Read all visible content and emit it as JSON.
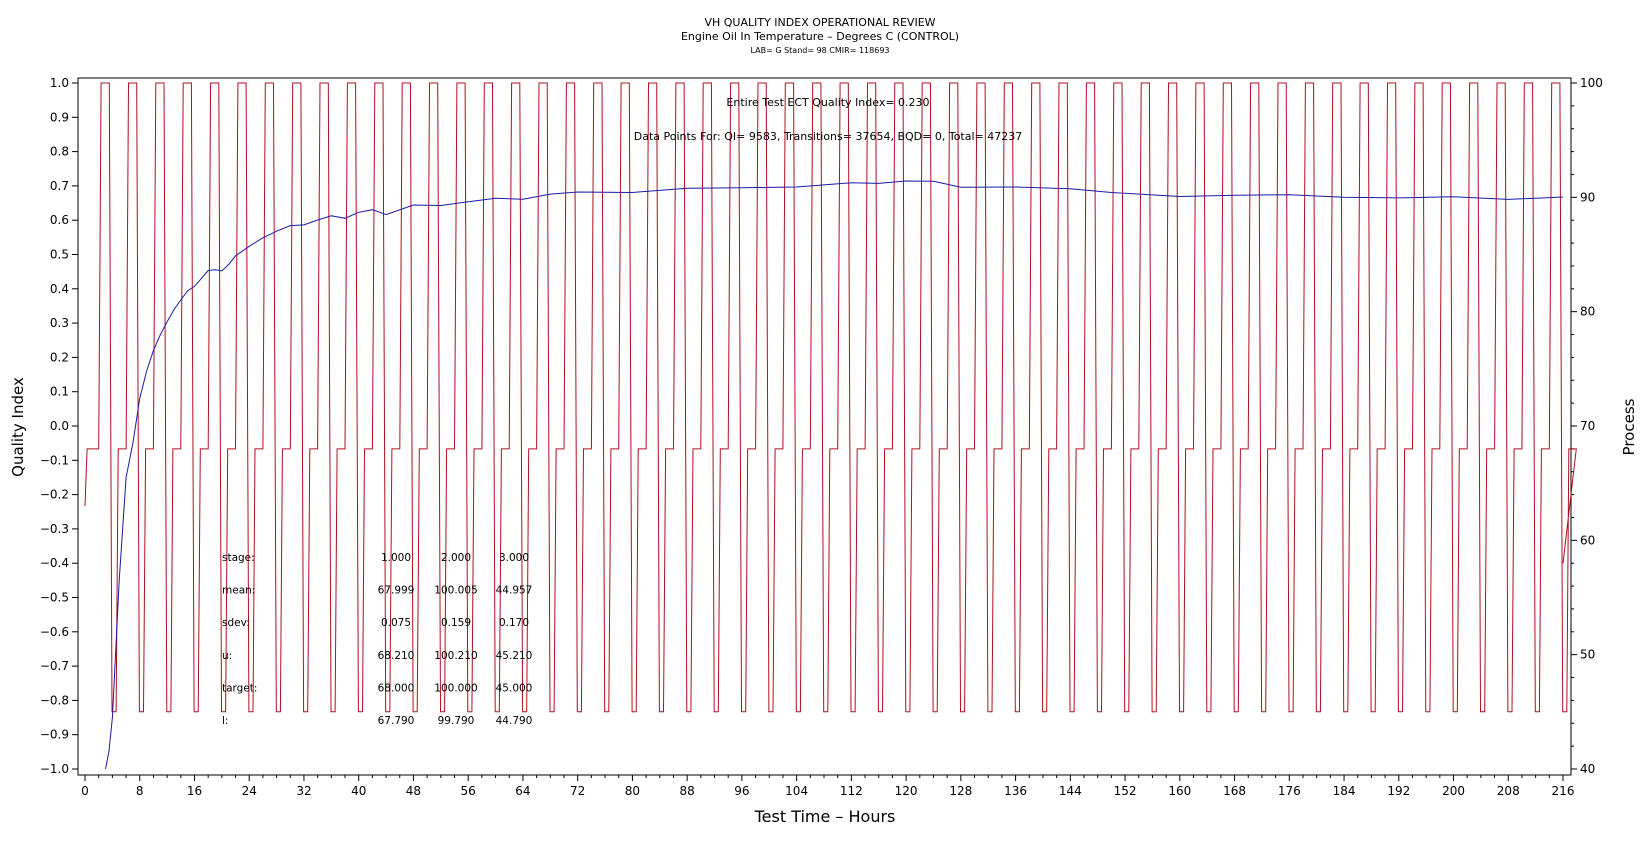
{
  "chart_data": {
    "type": "line",
    "title": "VH QUALITY INDEX OPERATIONAL REVIEW",
    "subtitle": "Engine Oil In Temperature – Degrees C (CONTROL)",
    "info_line": "LAB= G Stand= 98 CMIR= 118693",
    "xlabel": "Test Time – Hours",
    "ylabel_left": "Quality Index",
    "ylabel_right": "Process",
    "xlim": [
      0,
      216
    ],
    "x_ticks": [
      0,
      8,
      16,
      24,
      32,
      40,
      48,
      56,
      64,
      72,
      80,
      88,
      96,
      104,
      112,
      120,
      128,
      136,
      144,
      152,
      160,
      168,
      176,
      184,
      192,
      200,
      208,
      216
    ],
    "ylim_left": [
      -1.0,
      1.0
    ],
    "y_ticks_left": [
      "-1.0",
      "-0.9",
      "-0.8",
      "-0.7",
      "-0.6",
      "-0.5",
      "-0.4",
      "-0.3",
      "-0.2",
      "-0.1",
      "0.0",
      "0.1",
      "0.2",
      "0.3",
      "0.4",
      "0.5",
      "0.6",
      "0.7",
      "0.8",
      "0.9",
      "1.0"
    ],
    "ylim_right": [
      40,
      100
    ],
    "y_ticks_right": [
      40,
      50,
      60,
      70,
      80,
      90,
      100
    ],
    "annotations": {
      "qi_text": "Entire Test ECT Quality Index=   0.230",
      "points_text": "Data Points For: QI=  9583, Transitions= 37654, BQD=     0, Total= 47237"
    },
    "stats_table": {
      "rows": [
        {
          "label": "stage:",
          "values": [
            "1.000",
            "2.000",
            "3.000"
          ]
        },
        {
          "label": "mean:",
          "values": [
            "67.999",
            "100.005",
            "44.957"
          ]
        },
        {
          "label": "sdev:",
          "values": [
            "0.075",
            "0.159",
            "0.170"
          ]
        },
        {
          "label": "u:",
          "values": [
            "68.210",
            "100.210",
            "45.210"
          ]
        },
        {
          "label": "target:",
          "values": [
            "68.000",
            "100.000",
            "45.000"
          ]
        },
        {
          "label": "l:",
          "values": [
            "67.790",
            "99.790",
            "44.790"
          ]
        }
      ]
    },
    "series": [
      {
        "name": "",
        "axis": "left",
        "color": "#1a1aa6",
        "x": [
          3,
          3.5,
          4,
          5,
          6,
          7,
          8,
          9,
          10,
          11,
          12,
          13,
          14,
          15,
          16,
          17,
          18,
          19,
          20,
          21,
          22,
          24,
          26,
          28,
          30,
          32,
          34,
          36,
          38,
          40,
          42,
          44,
          48,
          52,
          56,
          60,
          64,
          68,
          72,
          80,
          88,
          96,
          104,
          112,
          116,
          120,
          124,
          128,
          136,
          144,
          150,
          156,
          160,
          168,
          176,
          184,
          192,
          200,
          208,
          216
        ],
        "y": [
          -1.0,
          -0.95,
          -0.85,
          -0.45,
          -0.15,
          -0.05,
          0.08,
          0.16,
          0.22,
          0.27,
          0.3,
          0.34,
          0.37,
          0.39,
          0.41,
          0.43,
          0.45,
          0.46,
          0.45,
          0.47,
          0.5,
          0.52,
          0.55,
          0.57,
          0.58,
          0.59,
          0.6,
          0.61,
          0.61,
          0.62,
          0.63,
          0.62,
          0.64,
          0.645,
          0.655,
          0.66,
          0.665,
          0.675,
          0.68,
          0.685,
          0.69,
          0.695,
          0.7,
          0.705,
          0.71,
          0.715,
          0.71,
          0.7,
          0.695,
          0.69,
          0.685,
          0.67,
          0.67,
          0.675,
          0.67,
          0.67,
          0.665,
          0.665,
          0.665,
          0.665
        ]
      },
      {
        "name": "",
        "axis": "right",
        "color": "#b01020",
        "pattern": "cyclic temperature: 68 → 100 → 45 °C, 4-hour cycle",
        "stage_levels": [
          68,
          100,
          45
        ],
        "cycle_hours": 4,
        "start_hour": 2,
        "end_hour": 216
      }
    ]
  }
}
